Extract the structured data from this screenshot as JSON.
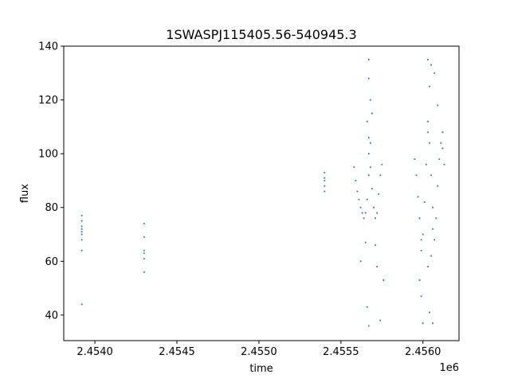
{
  "chart_data": {
    "type": "scatter",
    "title": "1SWASPJ115405.56-540945.3",
    "xlabel": "time",
    "ylabel": "flux",
    "x_offset_label": "1e6",
    "xlim": [
      2.45381,
      2.45622
    ],
    "ylim": [
      30.5,
      140
    ],
    "x_ticks": [
      {
        "value": 2.454,
        "label": "2.4540"
      },
      {
        "value": 2.4545,
        "label": "2.4545"
      },
      {
        "value": 2.455,
        "label": "2.4550"
      },
      {
        "value": 2.4555,
        "label": "2.4555"
      },
      {
        "value": 2.456,
        "label": "2.4560"
      }
    ],
    "y_ticks": [
      {
        "value": 40,
        "label": "40"
      },
      {
        "value": 60,
        "label": "60"
      },
      {
        "value": 80,
        "label": "80"
      },
      {
        "value": 100,
        "label": "100"
      },
      {
        "value": 120,
        "label": "120"
      },
      {
        "value": 140,
        "label": "140"
      }
    ],
    "marker_color": "#1f77b4",
    "grid": false,
    "series": [
      {
        "values": [
          {
            "x": 2.45392,
            "y": 77
          },
          {
            "x": 2.45392,
            "y": 75
          },
          {
            "x": 2.45392,
            "y": 73
          },
          {
            "x": 2.45392,
            "y": 72
          },
          {
            "x": 2.45392,
            "y": 71
          },
          {
            "x": 2.45392,
            "y": 70
          },
          {
            "x": 2.45392,
            "y": 68
          },
          {
            "x": 2.45392,
            "y": 64
          },
          {
            "x": 2.45392,
            "y": 44
          },
          {
            "x": 2.4543,
            "y": 74
          },
          {
            "x": 2.4543,
            "y": 69
          },
          {
            "x": 2.4543,
            "y": 64
          },
          {
            "x": 2.4543,
            "y": 63
          },
          {
            "x": 2.4543,
            "y": 61
          },
          {
            "x": 2.4543,
            "y": 56
          },
          {
            "x": 2.4554,
            "y": 93
          },
          {
            "x": 2.4554,
            "y": 91
          },
          {
            "x": 2.4554,
            "y": 90
          },
          {
            "x": 2.4554,
            "y": 88
          },
          {
            "x": 2.4554,
            "y": 86
          },
          {
            "x": 2.45558,
            "y": 95
          },
          {
            "x": 2.45559,
            "y": 90
          },
          {
            "x": 2.4556,
            "y": 86
          },
          {
            "x": 2.45561,
            "y": 83
          },
          {
            "x": 2.45562,
            "y": 80
          },
          {
            "x": 2.45563,
            "y": 78
          },
          {
            "x": 2.45564,
            "y": 76
          },
          {
            "x": 2.45565,
            "y": 78
          },
          {
            "x": 2.45566,
            "y": 83
          },
          {
            "x": 2.45567,
            "y": 92
          },
          {
            "x": 2.45567,
            "y": 100
          },
          {
            "x": 2.45567,
            "y": 106
          },
          {
            "x": 2.45568,
            "y": 104
          },
          {
            "x": 2.45568,
            "y": 95
          },
          {
            "x": 2.45569,
            "y": 87
          },
          {
            "x": 2.4557,
            "y": 80
          },
          {
            "x": 2.45571,
            "y": 76
          },
          {
            "x": 2.45572,
            "y": 78
          },
          {
            "x": 2.45573,
            "y": 85
          },
          {
            "x": 2.45574,
            "y": 92
          },
          {
            "x": 2.45575,
            "y": 96
          },
          {
            "x": 2.45567,
            "y": 135
          },
          {
            "x": 2.45567,
            "y": 128
          },
          {
            "x": 2.45568,
            "y": 120
          },
          {
            "x": 2.45566,
            "y": 112
          },
          {
            "x": 2.45569,
            "y": 115
          },
          {
            "x": 2.45565,
            "y": 67
          },
          {
            "x": 2.45562,
            "y": 60
          },
          {
            "x": 2.45566,
            "y": 43
          },
          {
            "x": 2.45567,
            "y": 36
          },
          {
            "x": 2.45572,
            "y": 58
          },
          {
            "x": 2.45574,
            "y": 38
          },
          {
            "x": 2.45576,
            "y": 53
          },
          {
            "x": 2.45571,
            "y": 66
          },
          {
            "x": 2.45595,
            "y": 98
          },
          {
            "x": 2.45596,
            "y": 92
          },
          {
            "x": 2.45597,
            "y": 84
          },
          {
            "x": 2.45598,
            "y": 76
          },
          {
            "x": 2.45599,
            "y": 68
          },
          {
            "x": 2.45599,
            "y": 64
          },
          {
            "x": 2.456,
            "y": 70
          },
          {
            "x": 2.45601,
            "y": 82
          },
          {
            "x": 2.45602,
            "y": 96
          },
          {
            "x": 2.45603,
            "y": 108
          },
          {
            "x": 2.45603,
            "y": 112
          },
          {
            "x": 2.45604,
            "y": 104
          },
          {
            "x": 2.45605,
            "y": 92
          },
          {
            "x": 2.45606,
            "y": 80
          },
          {
            "x": 2.45606,
            "y": 72
          },
          {
            "x": 2.45607,
            "y": 68
          },
          {
            "x": 2.45608,
            "y": 76
          },
          {
            "x": 2.45609,
            "y": 88
          },
          {
            "x": 2.4561,
            "y": 98
          },
          {
            "x": 2.45611,
            "y": 104
          },
          {
            "x": 2.45612,
            "y": 102
          },
          {
            "x": 2.45613,
            "y": 96
          },
          {
            "x": 2.45603,
            "y": 135
          },
          {
            "x": 2.45605,
            "y": 133
          },
          {
            "x": 2.45604,
            "y": 125
          },
          {
            "x": 2.45607,
            "y": 130
          },
          {
            "x": 2.45609,
            "y": 118
          },
          {
            "x": 2.45612,
            "y": 108
          },
          {
            "x": 2.45598,
            "y": 53
          },
          {
            "x": 2.45599,
            "y": 47
          },
          {
            "x": 2.456,
            "y": 37
          },
          {
            "x": 2.45603,
            "y": 58
          },
          {
            "x": 2.45604,
            "y": 41
          },
          {
            "x": 2.45606,
            "y": 37
          },
          {
            "x": 2.45605,
            "y": 62
          }
        ]
      }
    ]
  }
}
